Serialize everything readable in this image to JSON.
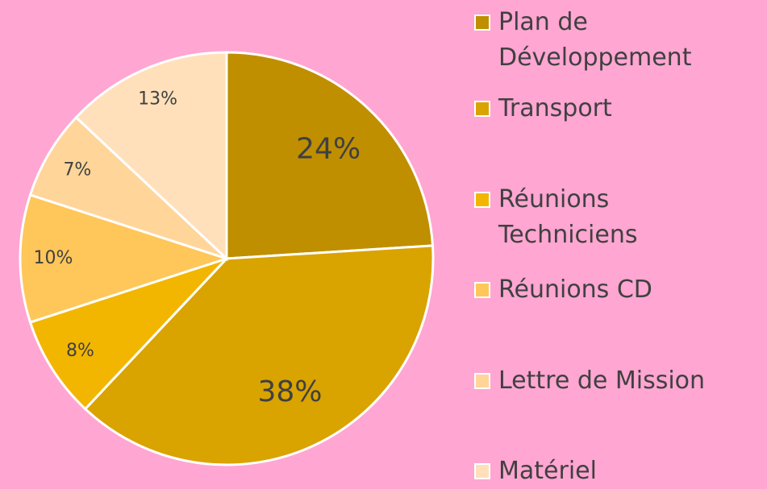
{
  "chart_data": {
    "type": "pie",
    "categories": [
      "Plan de Développement",
      "Transport",
      "Réunions Techniciens",
      "Réunions CD",
      "Lettre de Mission",
      "Matériel"
    ],
    "values": [
      24,
      38,
      8,
      10,
      7,
      13
    ],
    "value_labels": [
      "24%",
      "38%",
      "8%",
      "10%",
      "7%",
      "13%"
    ],
    "colors": [
      "#bf8f00",
      "#d9a300",
      "#f2b600",
      "#ffc65a",
      "#ffd59a",
      "#ffe0bb"
    ]
  }
}
